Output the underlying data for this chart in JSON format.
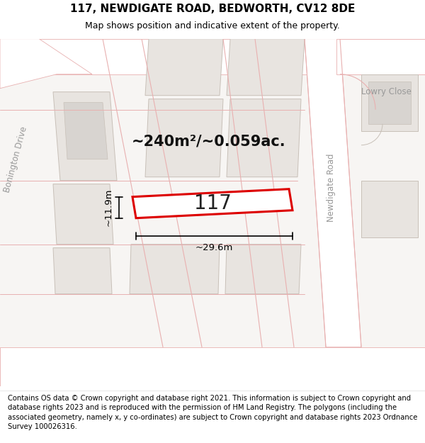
{
  "title": "117, NEWDIGATE ROAD, BEDWORTH, CV12 8DE",
  "subtitle": "Map shows position and indicative extent of the property.",
  "footer": "Contains OS data © Crown copyright and database right 2021. This information is subject to Crown copyright and database rights 2023 and is reproduced with the permission of HM Land Registry. The polygons (including the associated geometry, namely x, y co-ordinates) are subject to Crown copyright and database rights 2023 Ordnance Survey 100026316.",
  "map_bg": "#f7f5f3",
  "road_color": "#ffffff",
  "road_line_color": "#e8b0b0",
  "plot_outline_color": "#dd0000",
  "plot_fill_color": "#ffffff",
  "building_fill": "#e8e4e0",
  "building_outline": "#c8c0b8",
  "area_text": "~240m²/~0.059ac.",
  "label_117": "117",
  "dim_width": "~29.6m",
  "dim_height": "~11.9m",
  "title_fontsize": 11,
  "subtitle_fontsize": 9,
  "footer_fontsize": 7.2,
  "road_label_color": "#999999",
  "road_label_size": 8.5
}
